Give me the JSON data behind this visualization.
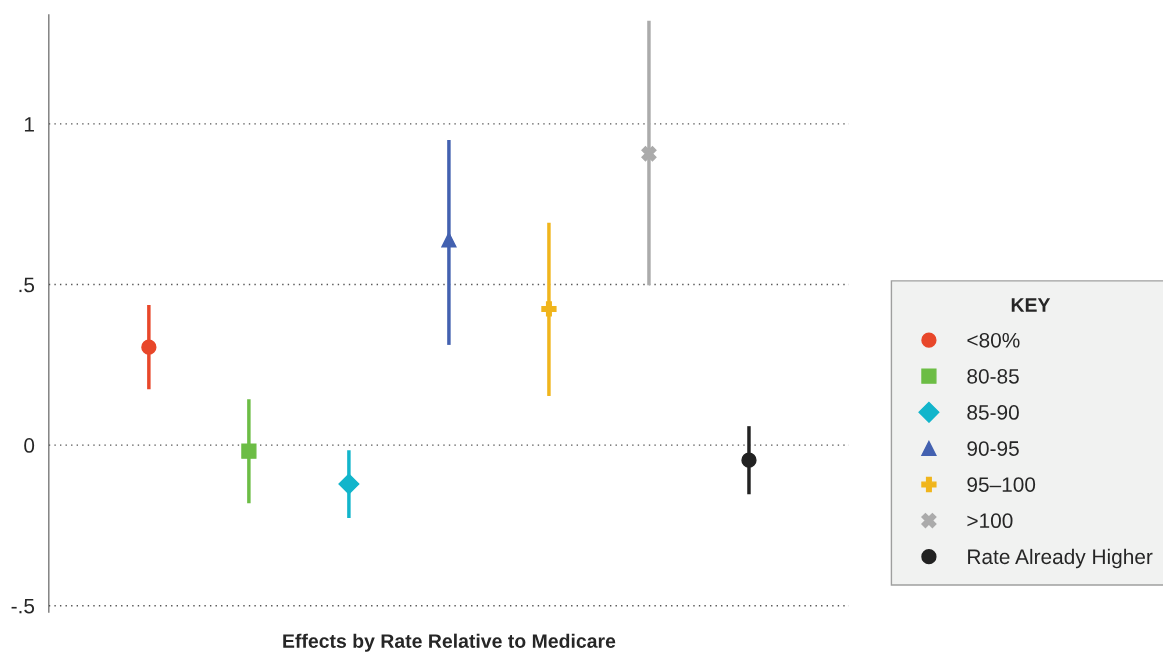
{
  "chart_data": {
    "type": "scatter",
    "xlabel": "Effects by Rate Relative to Medicare",
    "legend_title": "KEY",
    "legend": "right",
    "grid": "y",
    "categories": [
      null,
      null,
      null,
      null,
      null,
      null,
      null
    ],
    "ylim": [
      -0.52,
      1.34
    ],
    "yticks": [
      {
        "value": -0.5,
        "label": "-.5"
      },
      0,
      {
        "value": 0.5,
        "label": ".5"
      },
      1
    ],
    "series": [
      {
        "name": "<80%",
        "color": "#e8472a",
        "marker": "circle",
        "values": [
          0.305,
          null,
          null,
          null,
          null,
          null,
          null
        ],
        "errors": [
          [
            0.174,
            0.436
          ],
          null,
          null,
          null,
          null,
          null,
          null
        ]
      },
      {
        "name": "80-85",
        "color": "#6cbd45",
        "marker": "square",
        "values": [
          null,
          -0.019,
          null,
          null,
          null,
          null,
          null
        ],
        "errors": [
          null,
          [
            -0.181,
            0.143
          ],
          null,
          null,
          null,
          null,
          null
        ]
      },
      {
        "name": "85-90",
        "color": "#12b5cb",
        "marker": "diamond",
        "values": [
          null,
          null,
          -0.121,
          null,
          null,
          null,
          null
        ],
        "errors": [
          null,
          null,
          [
            -0.227,
            -0.016
          ],
          null,
          null,
          null,
          null
        ]
      },
      {
        "name": "90-95",
        "color": "#4361b0",
        "marker": "triangle",
        "values": [
          null,
          null,
          null,
          0.639,
          null,
          null,
          null
        ],
        "errors": [
          null,
          null,
          null,
          [
            0.312,
            0.95
          ],
          null,
          null,
          null
        ]
      },
      {
        "name": "95–100",
        "color": "#f0b51c",
        "marker": "cross",
        "values": [
          null,
          null,
          null,
          null,
          0.424,
          null,
          null
        ],
        "errors": [
          null,
          null,
          null,
          null,
          [
            0.153,
            0.692
          ],
          null,
          null
        ]
      },
      {
        "name": ">100",
        "color": "#ababab",
        "marker": "x",
        "values": [
          null,
          null,
          null,
          null,
          null,
          0.907,
          null
        ],
        "errors": [
          null,
          null,
          null,
          null,
          null,
          [
            0.498,
            1.321
          ],
          null
        ]
      },
      {
        "name": "Rate Already Higher",
        "color": "#222222",
        "marker": "circle",
        "values": [
          null,
          null,
          null,
          null,
          null,
          null,
          -0.047
        ],
        "errors": [
          null,
          null,
          null,
          null,
          null,
          null,
          [
            -0.153,
            0.059
          ]
        ]
      }
    ]
  }
}
